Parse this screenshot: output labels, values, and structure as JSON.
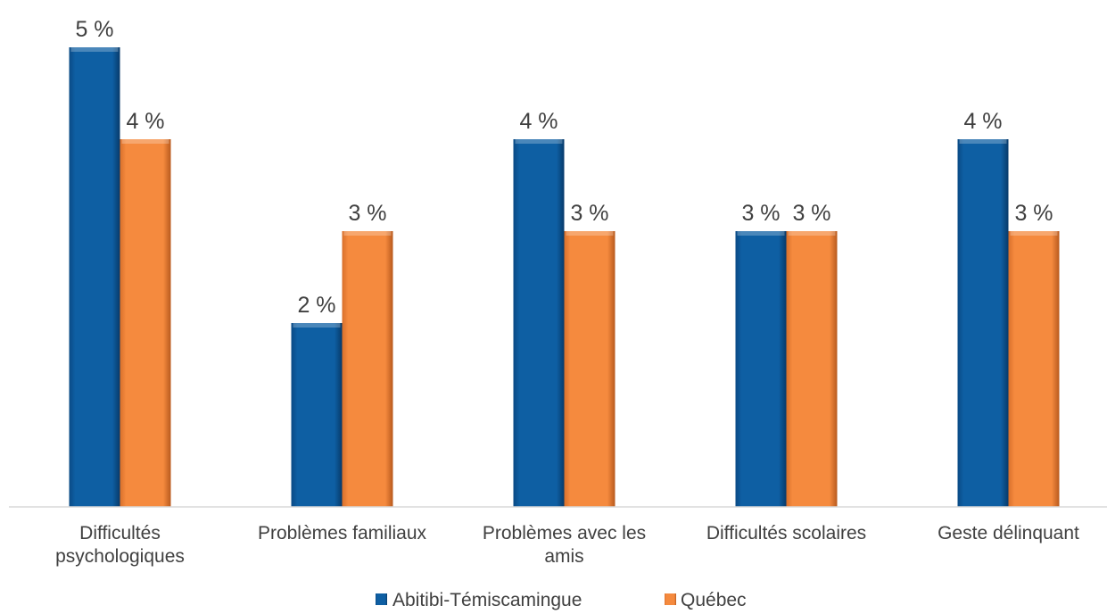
{
  "chart_data": {
    "type": "bar",
    "title": "",
    "xlabel": "",
    "ylabel": "",
    "ylim": [
      0,
      5
    ],
    "grid": false,
    "legend_position": "bottom",
    "categories": [
      [
        "Difficultés",
        "psychologiques"
      ],
      [
        "Problèmes familiaux"
      ],
      [
        "Problèmes avec les",
        "amis"
      ],
      [
        "Difficultés scolaires"
      ],
      [
        "Geste délinquant"
      ]
    ],
    "series": [
      {
        "name": "Abitibi-Témiscamingue",
        "color": "#0d5a9c",
        "values": [
          5,
          2,
          4,
          3,
          4
        ],
        "labels": [
          "5 %",
          "2 %",
          "4 %",
          "3 %",
          "4 %"
        ]
      },
      {
        "name": "Québec",
        "color": "#f0843a",
        "values": [
          4,
          3,
          3,
          3,
          3
        ],
        "labels": [
          "4 %",
          "3 %",
          "3 %",
          "3 %",
          "3 %"
        ]
      }
    ]
  }
}
